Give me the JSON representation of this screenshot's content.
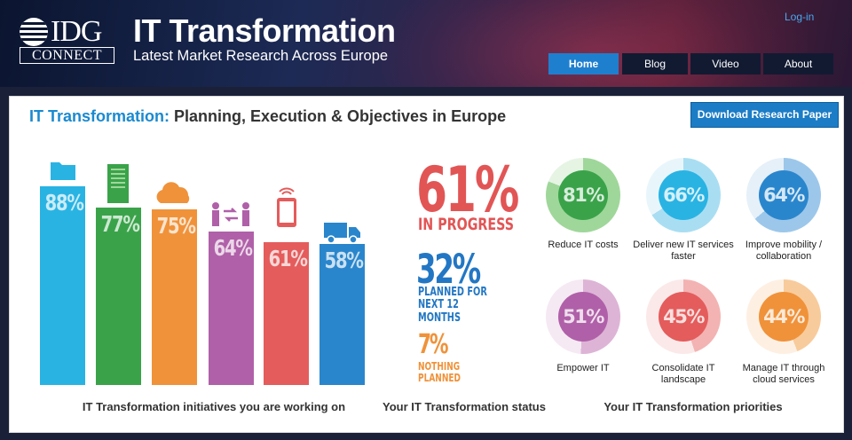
{
  "header": {
    "logo_top": "IDG",
    "logo_bottom": "CONNECT",
    "title": "IT Transformation",
    "subtitle": "Latest Market Research Across Europe",
    "login": "Log-in",
    "nav": [
      {
        "label": "Home",
        "active": true
      },
      {
        "label": "Blog",
        "active": false
      },
      {
        "label": "Video",
        "active": false
      },
      {
        "label": "About",
        "active": false
      }
    ]
  },
  "panel": {
    "title_accent": "IT Transformation:",
    "title_rest": " Planning, Execution & Objectives in Europe",
    "download_button": "Download Research Paper"
  },
  "initiatives": {
    "label": "IT Transformation initiatives you are working on",
    "bars": [
      {
        "value": "88%",
        "color": "#29b3e3",
        "icon": "folder-icon"
      },
      {
        "value": "77%",
        "color": "#3aa34a",
        "icon": "document-icon"
      },
      {
        "value": "75%",
        "color": "#f0923a",
        "icon": "cloud-icon"
      },
      {
        "value": "64%",
        "color": "#b060a8",
        "icon": "people-exchange-icon"
      },
      {
        "value": "61%",
        "color": "#e45c5c",
        "icon": "mobile-wifi-icon"
      },
      {
        "value": "58%",
        "color": "#2a86cc",
        "icon": "truck-icon"
      }
    ]
  },
  "status": {
    "label": "Your IT Transformation status",
    "items": [
      {
        "value": "61%",
        "caption": "IN PROGRESS",
        "color": "#e25555"
      },
      {
        "value": "32%",
        "caption": "PLANNED FOR NEXT 12 MONTHS",
        "color": "#2277c4"
      },
      {
        "value": "7%",
        "caption": "NOTHING PLANNED",
        "color": "#f0923a"
      }
    ]
  },
  "priorities": {
    "label": "Your IT Transformation priorities",
    "items": [
      {
        "value": "81%",
        "text": "Reduce IT costs",
        "color": "#3aa34a",
        "ring": "#9fd79a"
      },
      {
        "value": "66%",
        "text": "Deliver new IT services faster",
        "color": "#29b3e3",
        "ring": "#a9def2"
      },
      {
        "value": "64%",
        "text": "Improve mobility / collaboration",
        "color": "#2a86cc",
        "ring": "#9cc7ea"
      },
      {
        "value": "51%",
        "text": "Empower IT",
        "color": "#b060a8",
        "ring": "#ddb4d6"
      },
      {
        "value": "45%",
        "text": "Consolidate IT landscape",
        "color": "#e45c5c",
        "ring": "#f3b3b3"
      },
      {
        "value": "44%",
        "text": "Manage IT through cloud services",
        "color": "#f0923a",
        "ring": "#f8cb9c"
      }
    ]
  }
}
